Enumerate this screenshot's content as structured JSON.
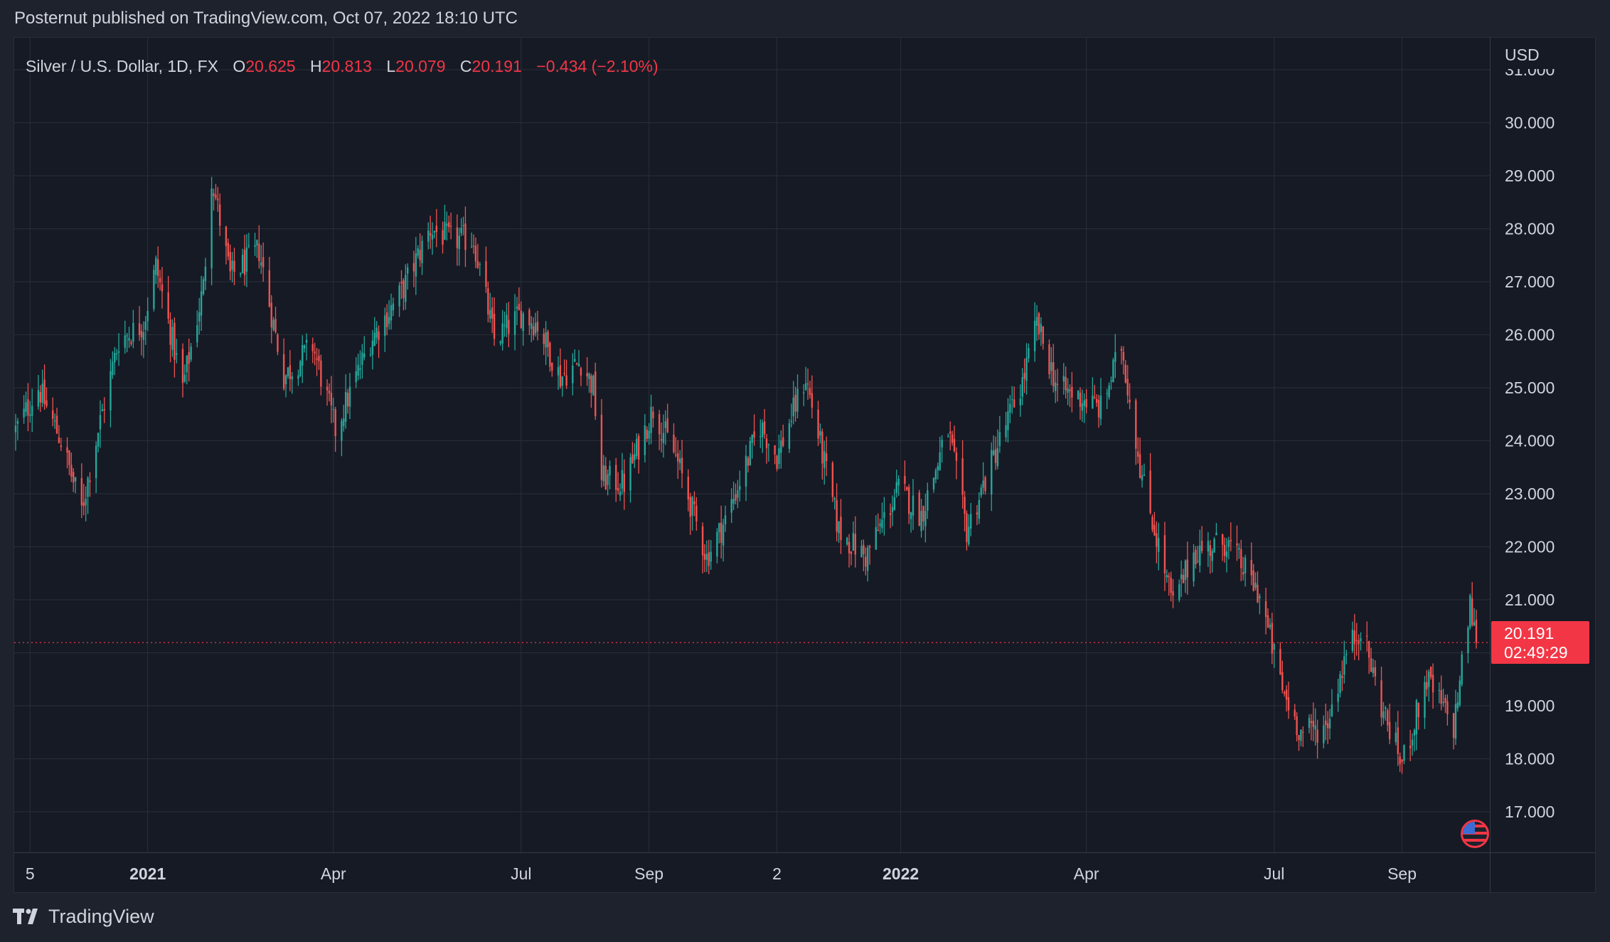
{
  "header": {
    "published_text": "Posternut published on TradingView.com, Oct 07, 2022 18:10 UTC"
  },
  "legend": {
    "symbol": "Silver / U.S. Dollar, 1D, FX",
    "open_label": "O",
    "open": "20.625",
    "high_label": "H",
    "high": "20.813",
    "low_label": "L",
    "low": "20.079",
    "close_label": "C",
    "close": "20.191",
    "change": "−0.434 (−2.10%)"
  },
  "price_axis": {
    "unit": "USD",
    "ticks": [
      "31.000",
      "30.000",
      "29.000",
      "28.000",
      "27.000",
      "26.000",
      "25.000",
      "24.000",
      "23.000",
      "22.000",
      "21.000",
      "20.000",
      "19.000",
      "18.000",
      "17.000"
    ]
  },
  "price_tag": {
    "price": "20.191",
    "countdown": "02:49:29"
  },
  "time_axis": {
    "labels": [
      {
        "text": "5",
        "bold": false
      },
      {
        "text": "2021",
        "bold": true
      },
      {
        "text": "Apr",
        "bold": false
      },
      {
        "text": "Jul",
        "bold": false
      },
      {
        "text": "Sep",
        "bold": false
      },
      {
        "text": "2",
        "bold": false
      },
      {
        "text": "2022",
        "bold": true
      },
      {
        "text": "Apr",
        "bold": false
      },
      {
        "text": "Jul",
        "bold": false
      },
      {
        "text": "Sep",
        "bold": false
      }
    ]
  },
  "footer": {
    "brand": "TradingView"
  },
  "colors": {
    "up": "#26a69a",
    "down": "#ef5350",
    "background": "#161a25",
    "grid": "#2a2e39",
    "accent": "#f23645",
    "text": "#d1d4dc"
  },
  "icons": {
    "event_badge": "us-flag-icon",
    "brand_logo": "tradingview-logo-icon"
  },
  "chart_data": {
    "type": "candlestick",
    "title": "Silver / U.S. Dollar, 1D, FX",
    "ylabel": "USD",
    "ylim": [
      16.3,
      31.0
    ],
    "last_price": 20.191,
    "grid": true,
    "anchors": [
      [
        "2020-10-29",
        24.2
      ],
      [
        "2020-11-09",
        25.0
      ],
      [
        "2020-11-20",
        24.0
      ],
      [
        "2020-11-30",
        22.7
      ],
      [
        "2020-12-08",
        24.2
      ],
      [
        "2020-12-18",
        25.9
      ],
      [
        "2020-12-30",
        26.2
      ],
      [
        "2021-01-05",
        27.3
      ],
      [
        "2021-01-18",
        25.0
      ],
      [
        "2021-01-28",
        26.9
      ],
      [
        "2021-02-01",
        29.0
      ],
      [
        "2021-02-10",
        27.1
      ],
      [
        "2021-02-24",
        27.6
      ],
      [
        "2021-03-08",
        25.2
      ],
      [
        "2021-03-22",
        25.8
      ],
      [
        "2021-04-02",
        24.2
      ],
      [
        "2021-04-19",
        25.9
      ],
      [
        "2021-05-04",
        26.8
      ],
      [
        "2021-05-18",
        28.0
      ],
      [
        "2021-05-28",
        27.8
      ],
      [
        "2021-06-08",
        27.8
      ],
      [
        "2021-06-18",
        25.9
      ],
      [
        "2021-07-01",
        26.4
      ],
      [
        "2021-07-09",
        26.2
      ],
      [
        "2021-07-20",
        25.2
      ],
      [
        "2021-07-30",
        25.5
      ],
      [
        "2021-08-05",
        25.0
      ],
      [
        "2021-08-09",
        23.3
      ],
      [
        "2021-08-20",
        23.2
      ],
      [
        "2021-09-03",
        24.6
      ],
      [
        "2021-09-14",
        23.7
      ],
      [
        "2021-09-29",
        21.8
      ],
      [
        "2021-10-08",
        22.5
      ],
      [
        "2021-10-25",
        24.3
      ],
      [
        "2021-11-02",
        23.7
      ],
      [
        "2021-11-16",
        25.2
      ],
      [
        "2021-12-02",
        22.3
      ],
      [
        "2021-12-15",
        21.8
      ],
      [
        "2021-12-31",
        23.1
      ],
      [
        "2022-01-11",
        22.6
      ],
      [
        "2022-01-24",
        24.2
      ],
      [
        "2022-02-02",
        22.3
      ],
      [
        "2022-02-17",
        23.9
      ],
      [
        "2022-03-01",
        25.1
      ],
      [
        "2022-03-08",
        26.2
      ],
      [
        "2022-03-18",
        25.0
      ],
      [
        "2022-03-30",
        24.8
      ],
      [
        "2022-04-08",
        24.6
      ],
      [
        "2022-04-18",
        25.8
      ],
      [
        "2022-04-28",
        23.3
      ],
      [
        "2022-05-13",
        20.9
      ],
      [
        "2022-05-23",
        21.9
      ],
      [
        "2022-06-08",
        22.1
      ],
      [
        "2022-06-24",
        21.1
      ],
      [
        "2022-07-05",
        19.3
      ],
      [
        "2022-07-14",
        18.5
      ],
      [
        "2022-07-26",
        18.6
      ],
      [
        "2022-08-05",
        20.0
      ],
      [
        "2022-08-12",
        20.5
      ],
      [
        "2022-08-22",
        19.0
      ],
      [
        "2022-09-01",
        17.9
      ],
      [
        "2022-09-13",
        19.5
      ],
      [
        "2022-09-26",
        18.6
      ],
      [
        "2022-10-04",
        20.9
      ],
      [
        "2022-10-07",
        20.191
      ]
    ]
  }
}
